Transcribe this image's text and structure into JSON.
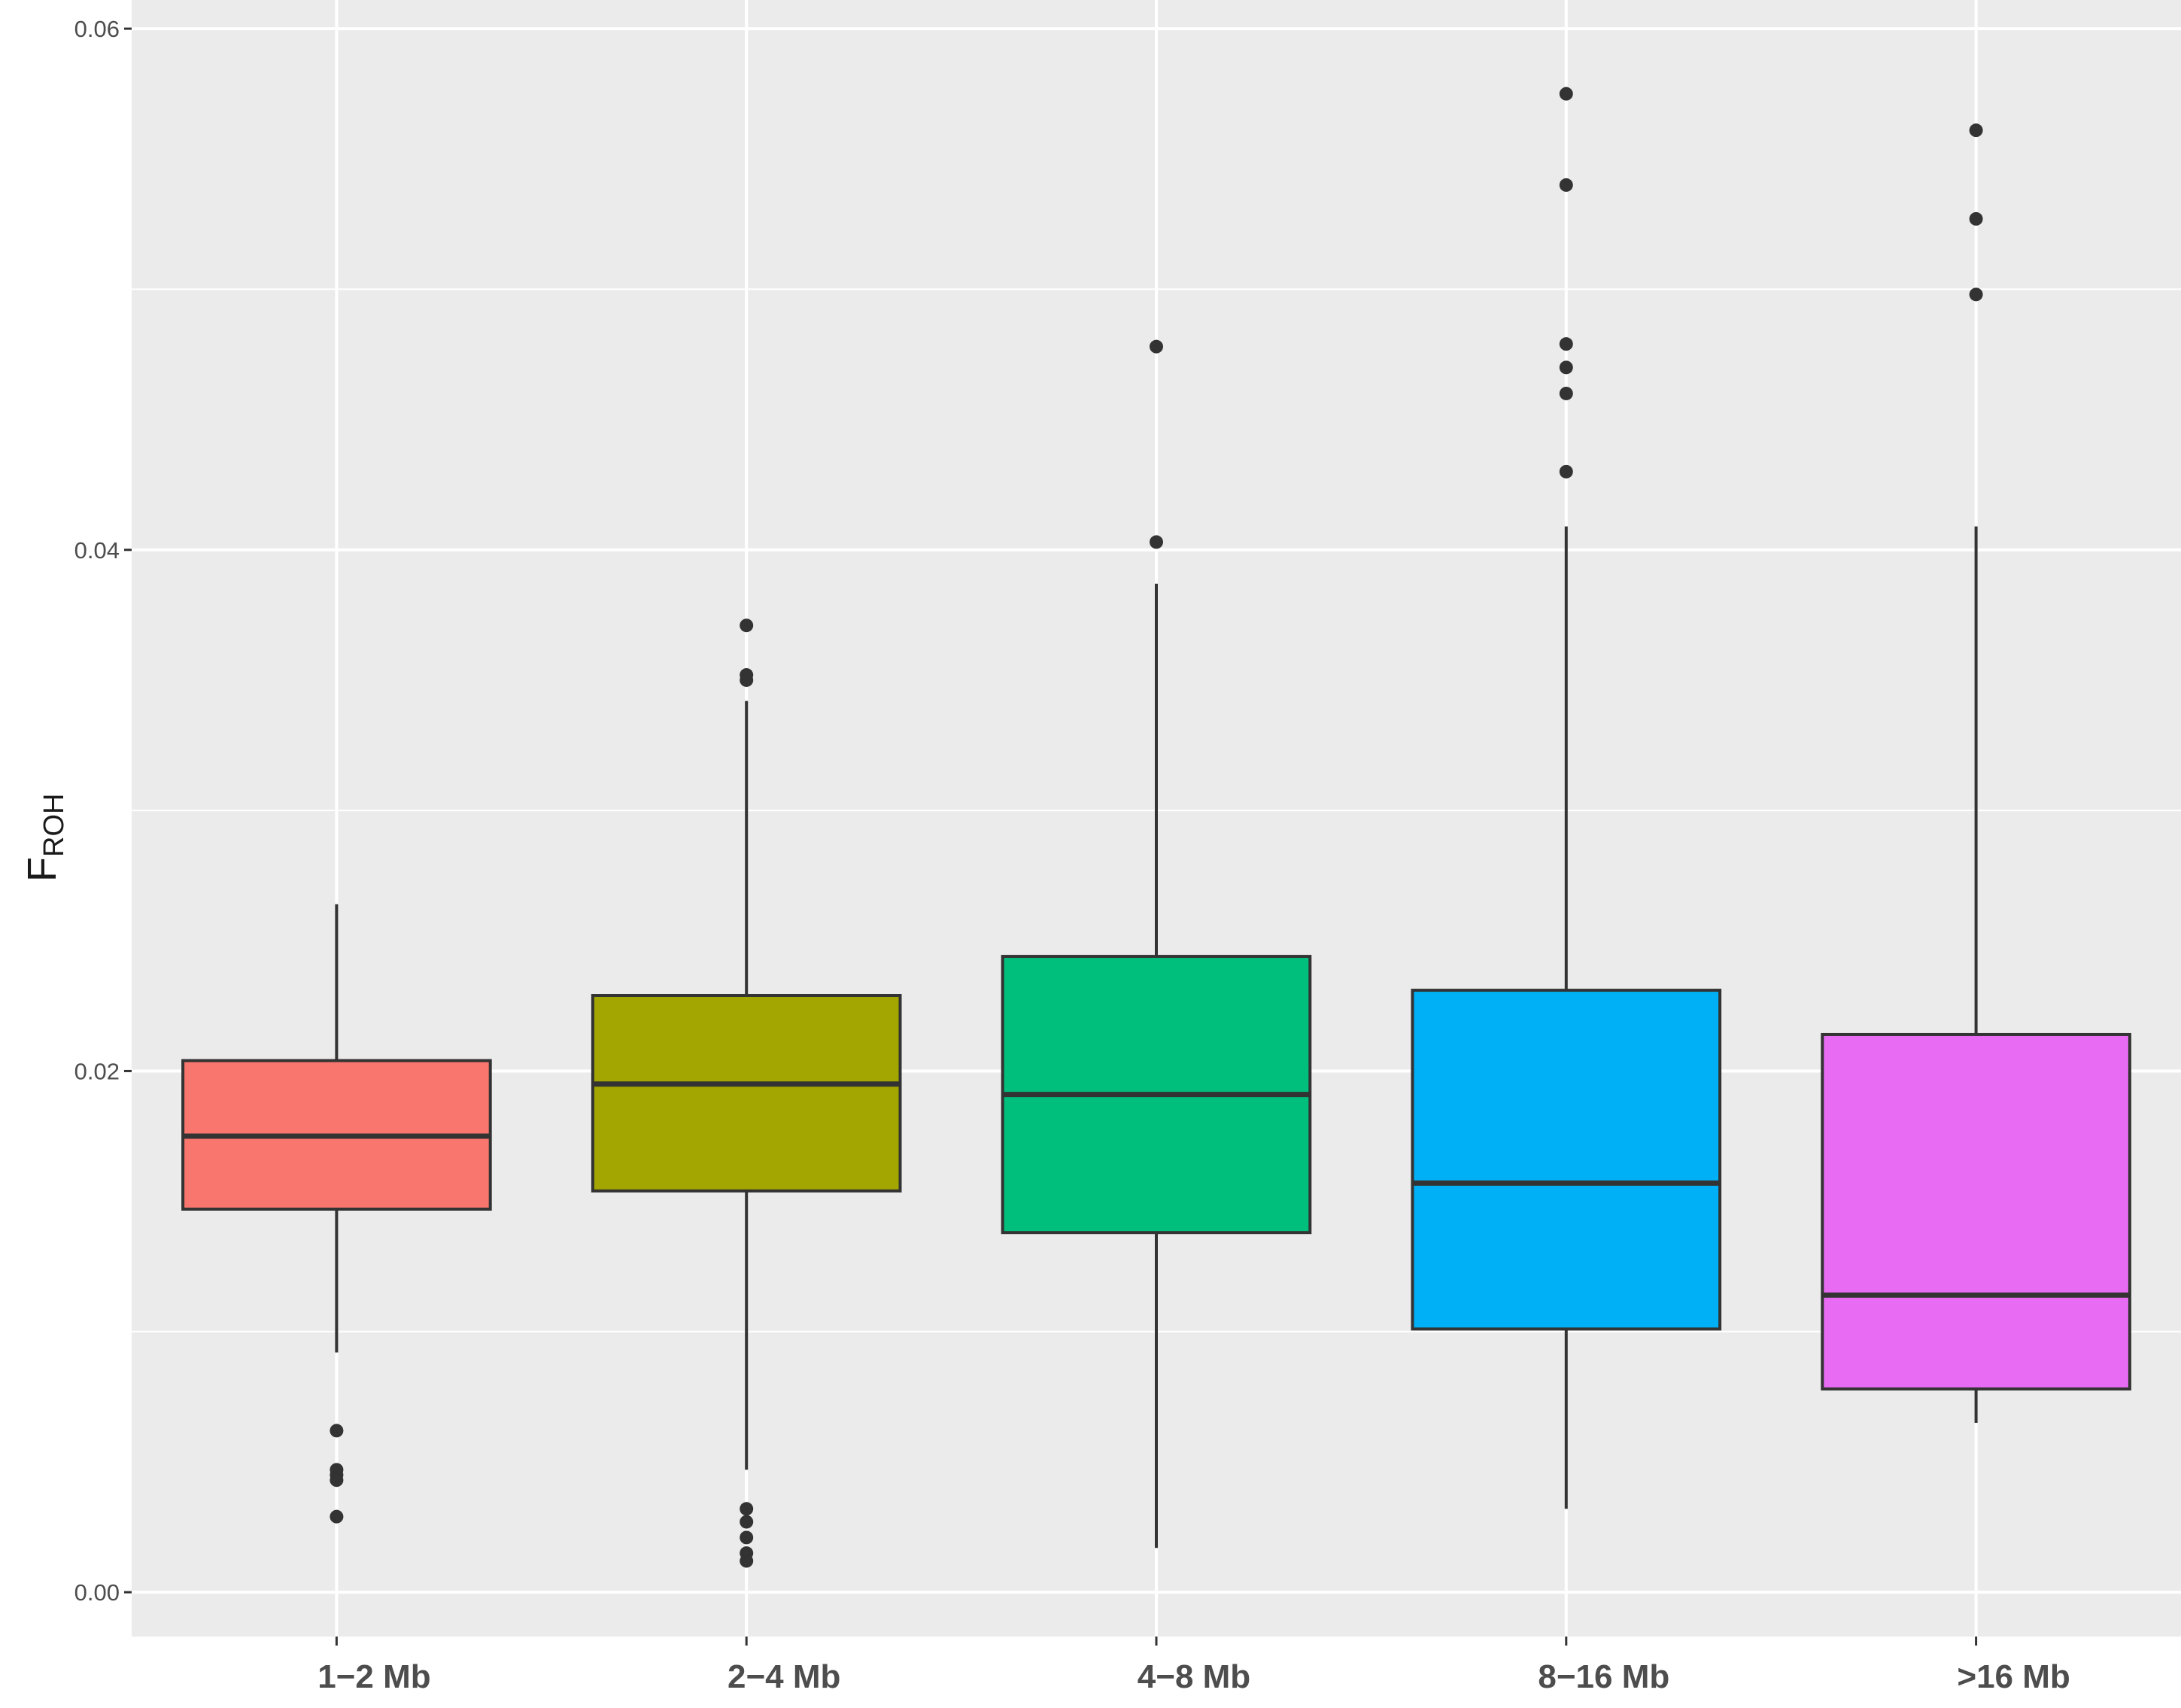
{
  "chart_data": {
    "type": "boxplot",
    "title": "",
    "xlabel": "",
    "ylabel": "F",
    "ylabel_subscript": "ROH",
    "ylim": [
      -0.0017,
      0.0611
    ],
    "yticks": [
      0.0,
      0.02,
      0.04,
      0.06
    ],
    "ytick_labels": [
      "0.00",
      "0.02",
      "0.04",
      "0.06"
    ],
    "grid": true,
    "legend": "none",
    "colors": {
      "panel_background": "#ebebeb",
      "grid": "#ffffff",
      "box_outline": "#333333",
      "outlier": "#333333"
    },
    "categories": [
      "1−2 Mb",
      "2−4 Mb",
      "4−8 Mb",
      "8−16 Mb",
      ">16 Mb"
    ],
    "boxes": [
      {
        "category": "1−2 Mb",
        "fill": "#F8766D",
        "whisker_low": 0.0092,
        "q1": 0.0147,
        "median": 0.0175,
        "q3": 0.0204,
        "whisker_high": 0.0264,
        "outliers": [
          0.0062,
          0.0047,
          0.0045,
          0.0043,
          0.0029
        ]
      },
      {
        "category": "2−4 Mb",
        "fill": "#A3A500",
        "whisker_low": 0.0047,
        "q1": 0.0154,
        "median": 0.0195,
        "q3": 0.0229,
        "whisker_high": 0.0342,
        "outliers": [
          0.0371,
          0.0352,
          0.035,
          0.0032,
          0.0027,
          0.0021,
          0.0015,
          0.0012
        ]
      },
      {
        "category": "4−8 Mb",
        "fill": "#00BF7D",
        "whisker_low": 0.0017,
        "q1": 0.0138,
        "median": 0.0191,
        "q3": 0.0244,
        "whisker_high": 0.0387,
        "outliers": [
          0.0478,
          0.0403
        ]
      },
      {
        "category": "8−16 Mb",
        "fill": "#00B0F6",
        "whisker_low": 0.0032,
        "q1": 0.0101,
        "median": 0.0157,
        "q3": 0.0231,
        "whisker_high": 0.0409,
        "outliers": [
          0.0575,
          0.054,
          0.0479,
          0.047,
          0.046,
          0.043
        ]
      },
      {
        "category": ">16 Mb",
        "fill": "#E76BF3",
        "whisker_low": 0.0065,
        "q1": 0.0078,
        "median": 0.0114,
        "q3": 0.0214,
        "whisker_high": 0.0409,
        "outliers": [
          0.0561,
          0.0527,
          0.0498
        ]
      }
    ]
  }
}
